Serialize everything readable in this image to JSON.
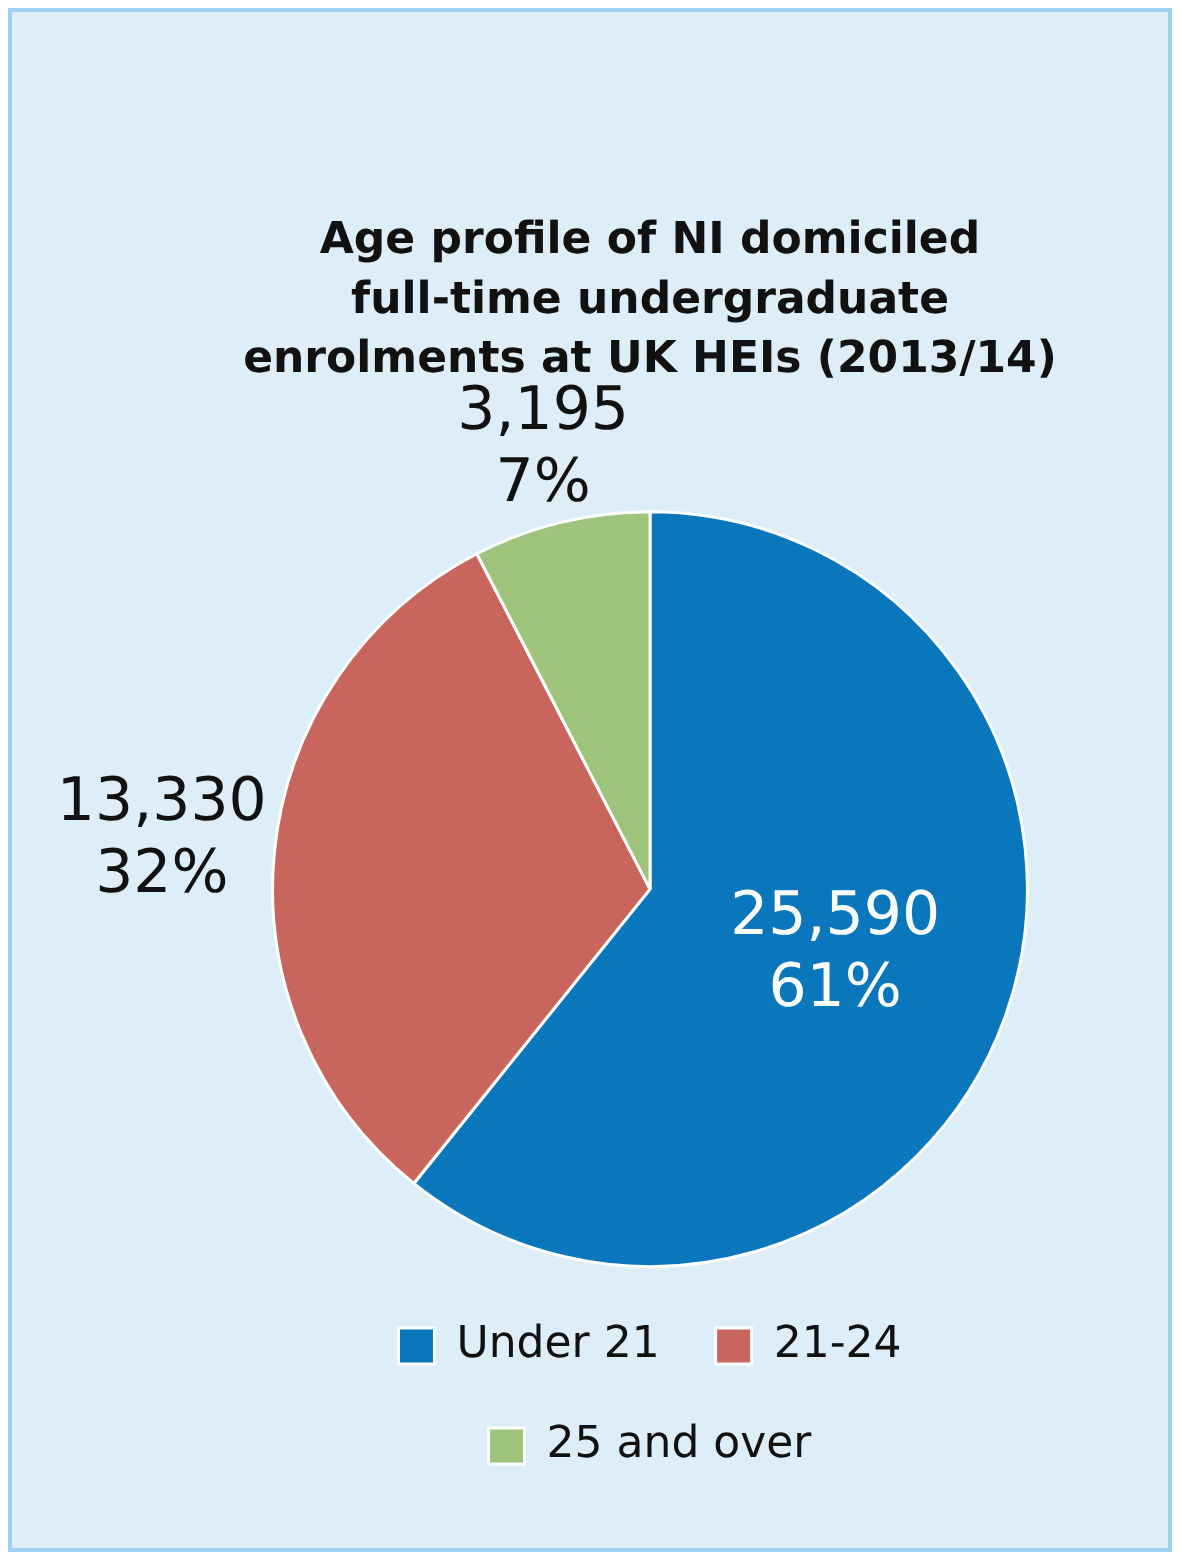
{
  "chart_data": {
    "type": "pie",
    "title": "Age profile of NI domiciled full-time undergraduate enrolments at UK HEIs (2013/14)",
    "categories": [
      "Under 21",
      "21-24",
      "25 and over"
    ],
    "values": [
      25590,
      13330,
      3195
    ],
    "colors": [
      "#0a77bd",
      "#c8665e",
      "#9dc47a"
    ],
    "value_labels": [
      "25,590\n61%",
      "13,330\n32%",
      "3,195\n7%"
    ],
    "legend": "bottom"
  }
}
